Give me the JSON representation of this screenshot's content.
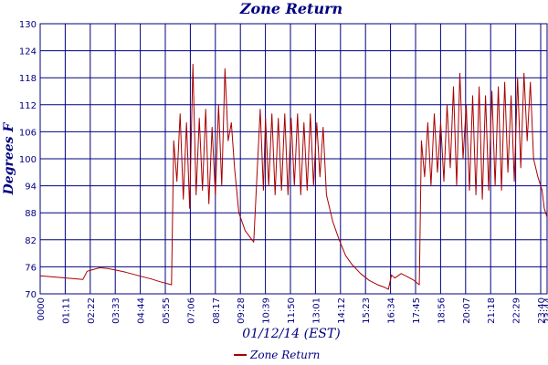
{
  "chart_data": {
    "type": "line",
    "title": "Zone Return",
    "xlabel": "01/12/14 (EST)",
    "ylabel": "Degrees F",
    "ylim": [
      70,
      130
    ],
    "y_ticks": [
      "70",
      "76",
      "82",
      "88",
      "94",
      "100",
      "106",
      "112",
      "118",
      "124",
      "130"
    ],
    "x_tick_labels": [
      "0000",
      "01:11",
      "02:22",
      "03:33",
      "04:44",
      "05:55",
      "07:06",
      "08:17",
      "09:28",
      "10:39",
      "11:50",
      "13:01",
      "14:12",
      "15:23",
      "16:34",
      "17:45",
      "18:56",
      "20:07",
      "21:18",
      "22:29",
      "23:40",
      "23:44"
    ],
    "x_range_hours": [
      0,
      23.7333
    ],
    "grid": true,
    "legend_position": "bottom-center",
    "series": [
      {
        "name": "Zone Return",
        "color": "#aa0000",
        "x": [
          0,
          0.5,
          1.0,
          1.5,
          2.0,
          2.2,
          2.4,
          2.8,
          3.2,
          3.6,
          4.0,
          4.4,
          4.8,
          5.2,
          5.6,
          6.0,
          6.15,
          6.25,
          6.4,
          6.55,
          6.7,
          6.85,
          7.0,
          7.15,
          7.3,
          7.45,
          7.6,
          7.75,
          7.9,
          8.05,
          8.2,
          8.35,
          8.5,
          8.65,
          8.8,
          8.95,
          9.1,
          9.3,
          9.6,
          10.0,
          10.3,
          10.45,
          10.55,
          10.7,
          10.85,
          11.0,
          11.15,
          11.3,
          11.45,
          11.6,
          11.75,
          11.9,
          12.05,
          12.2,
          12.35,
          12.5,
          12.65,
          12.8,
          12.95,
          13.1,
          13.25,
          13.4,
          13.7,
          14.0,
          14.3,
          14.6,
          15.0,
          15.4,
          15.8,
          16.1,
          16.3,
          16.45,
          16.6,
          16.9,
          17.2,
          17.5,
          17.75,
          17.85,
          18.0,
          18.15,
          18.3,
          18.45,
          18.6,
          18.75,
          18.9,
          19.05,
          19.2,
          19.35,
          19.5,
          19.65,
          19.8,
          19.95,
          20.1,
          20.25,
          20.4,
          20.55,
          20.7,
          20.85,
          21.0,
          21.15,
          21.3,
          21.45,
          21.6,
          21.75,
          21.9,
          22.05,
          22.2,
          22.35,
          22.5,
          22.65,
          22.8,
          22.95,
          23.1,
          23.3,
          23.5,
          23.6,
          23.7333
        ],
        "values": [
          74.0,
          73.8,
          73.6,
          73.4,
          73.2,
          75.0,
          75.3,
          75.8,
          75.6,
          75.2,
          74.8,
          74.3,
          73.8,
          73.3,
          72.7,
          72.2,
          72.0,
          104.0,
          95.0,
          110.0,
          91.0,
          108.0,
          89.0,
          121.0,
          92.0,
          109.0,
          93.0,
          111.0,
          90.0,
          107.0,
          92.0,
          112.0,
          94.0,
          120.0,
          104.0,
          108.0,
          98.0,
          88.0,
          84.0,
          81.5,
          111.0,
          93.0,
          109.0,
          94.0,
          110.0,
          92.0,
          109.0,
          93.0,
          110.0,
          92.0,
          109.0,
          94.0,
          110.0,
          92.0,
          108.0,
          93.0,
          110.0,
          94.0,
          108.0,
          96.0,
          107.0,
          92.0,
          86.0,
          82.0,
          78.5,
          76.5,
          74.5,
          73.0,
          72.0,
          71.5,
          71.0,
          74.2,
          73.5,
          74.5,
          73.8,
          73.0,
          72.0,
          104.0,
          96.0,
          108.0,
          94.0,
          110.0,
          97.0,
          108.0,
          95.0,
          112.0,
          98.0,
          116.0,
          94.0,
          119.0,
          100.0,
          112.0,
          93.0,
          114.0,
          92.0,
          116.0,
          91.0,
          114.0,
          93.0,
          115.0,
          94.0,
          116.0,
          93.0,
          117.0,
          97.0,
          114.0,
          95.0,
          118.0,
          98.0,
          119.0,
          104.0,
          117.0,
          100.0,
          96.0,
          93.0,
          89.0,
          87.0
        ]
      }
    ]
  }
}
